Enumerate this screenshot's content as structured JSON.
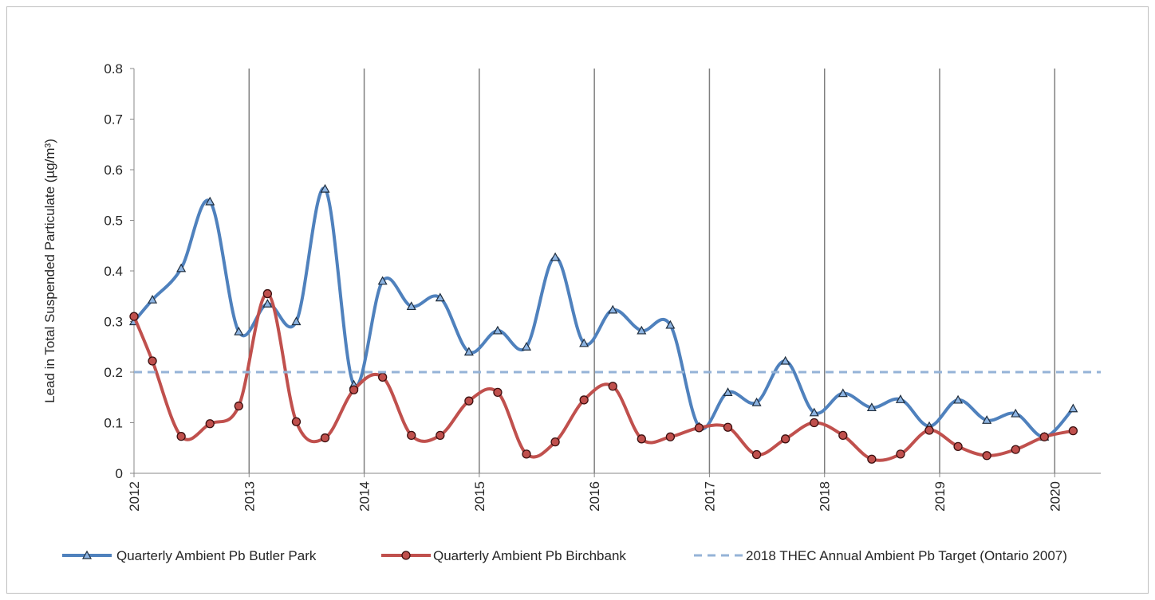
{
  "chart_data": {
    "type": "line",
    "ylabel": "Lead in Total Suspended Particulate  (µg/m³)",
    "ylim": [
      0,
      0.8
    ],
    "yticks": [
      "0",
      "0.1",
      "0.2",
      "0.3",
      "0.4",
      "0.5",
      "0.6",
      "0.7",
      "0.8"
    ],
    "xlim": [
      2012,
      2020.4
    ],
    "xticks": [
      "2012",
      "2013",
      "2014",
      "2015",
      "2016",
      "2017",
      "2018",
      "2019",
      "2020"
    ],
    "grid": "vertical lines at each year",
    "legend_position": "bottom",
    "series": [
      {
        "name": "Quarterly Ambient Pb Butler Park",
        "color": "#4f81bd",
        "marker": "triangle",
        "x": [
          2012.0,
          2012.16,
          2012.41,
          2012.66,
          2012.91,
          2013.16,
          2013.41,
          2013.66,
          2013.91,
          2014.16,
          2014.41,
          2014.66,
          2014.91,
          2015.16,
          2015.41,
          2015.66,
          2015.91,
          2016.16,
          2016.41,
          2016.66,
          2016.91,
          2017.16,
          2017.41,
          2017.66,
          2017.91,
          2018.16,
          2018.41,
          2018.66,
          2018.91,
          2019.16,
          2019.41,
          2019.66,
          2019.91,
          2020.16
        ],
        "values": [
          0.3,
          0.343,
          0.405,
          0.537,
          0.28,
          0.335,
          0.3,
          0.562,
          0.175,
          0.38,
          0.33,
          0.347,
          0.24,
          0.282,
          0.25,
          0.427,
          0.257,
          0.323,
          0.282,
          0.293,
          0.092,
          0.16,
          0.14,
          0.222,
          0.12,
          0.158,
          0.13,
          0.146,
          0.093,
          0.145,
          0.105,
          0.118,
          0.072,
          0.128
        ]
      },
      {
        "name": "Quarterly Ambient Pb Birchbank",
        "color": "#c0504d",
        "marker": "circle",
        "x": [
          2012.0,
          2012.16,
          2012.41,
          2012.66,
          2012.91,
          2013.16,
          2013.41,
          2013.66,
          2013.91,
          2014.16,
          2014.41,
          2014.66,
          2014.91,
          2015.16,
          2015.41,
          2015.66,
          2015.91,
          2016.16,
          2016.41,
          2016.66,
          2016.91,
          2017.16,
          2017.41,
          2017.66,
          2017.91,
          2018.16,
          2018.41,
          2018.66,
          2018.91,
          2019.16,
          2019.41,
          2019.66,
          2019.91,
          2020.16
        ],
        "values": [
          0.31,
          0.222,
          0.073,
          0.098,
          0.133,
          0.355,
          0.102,
          0.07,
          0.165,
          0.19,
          0.075,
          0.075,
          0.143,
          0.16,
          0.038,
          0.062,
          0.145,
          0.172,
          0.068,
          0.072,
          0.09,
          0.091,
          0.037,
          0.068,
          0.1,
          0.075,
          0.028,
          0.038,
          0.085,
          0.053,
          0.035,
          0.047,
          0.072,
          0.084
        ]
      },
      {
        "name": "2018 THEC Annual Ambient Pb Target (Ontario 2007)",
        "color": "#95b3d7",
        "style": "dashed",
        "x": [
          2012.0,
          2020.4
        ],
        "values": [
          0.2,
          0.2
        ]
      }
    ]
  }
}
